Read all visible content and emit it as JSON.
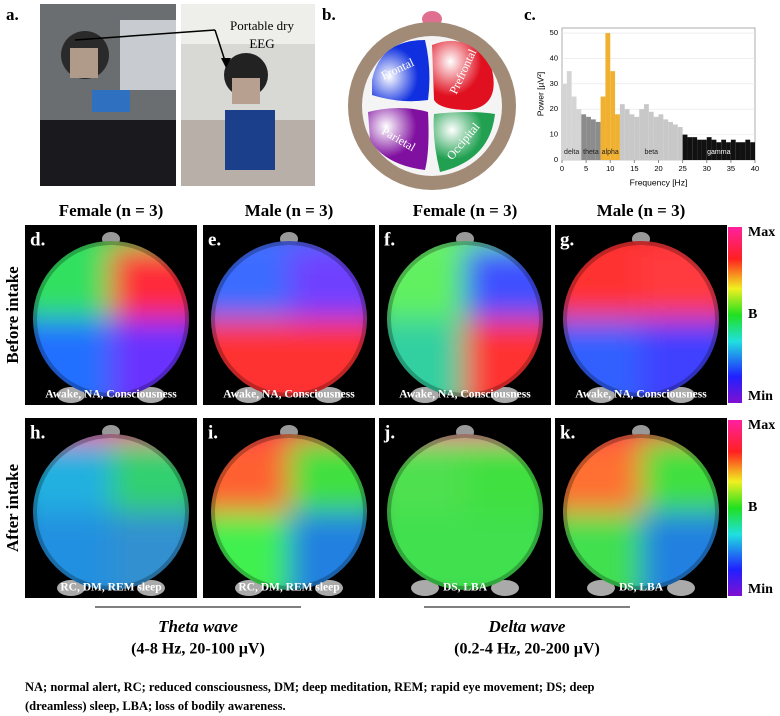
{
  "panel_a": {
    "label": "a.",
    "annotation": [
      "Portable dry",
      "EEG"
    ]
  },
  "panel_b": {
    "label": "b.",
    "regions": [
      "Frontal",
      "Prefrontal",
      "Parietal",
      "Occipital"
    ]
  },
  "panel_c": {
    "label": "c.",
    "chart": {
      "type": "bar",
      "ylabel": "Power [µV²]",
      "xlabel": "Frequency [Hz]",
      "bins": [
        0,
        1,
        2,
        3,
        4,
        5,
        6,
        7,
        8,
        9,
        10,
        11,
        12,
        13,
        14,
        15,
        16,
        17,
        18,
        19,
        20,
        21,
        22,
        23,
        24,
        25,
        26,
        27,
        28,
        29,
        30,
        31,
        32,
        33,
        34,
        35,
        36,
        37,
        38,
        39,
        40
      ],
      "values": [
        30,
        35,
        25,
        20,
        18,
        17,
        16,
        15,
        25,
        50,
        35,
        18,
        22,
        20,
        18,
        17,
        20,
        22,
        19,
        17,
        18,
        16,
        15,
        14,
        13,
        10,
        9,
        9,
        8,
        8,
        9,
        8,
        7,
        8,
        7,
        8,
        7,
        7,
        8,
        7
      ],
      "xlim": [
        0,
        40
      ],
      "ylim": [
        0,
        52
      ],
      "xticks": [
        0,
        5,
        10,
        15,
        20,
        25,
        30,
        35,
        40
      ],
      "yticks": [
        0,
        10,
        20,
        30,
        40,
        50
      ],
      "bands": [
        {
          "name": "delta",
          "range": [
            0,
            4
          ],
          "color": "#d4d4d4"
        },
        {
          "name": "theta",
          "range": [
            4,
            8
          ],
          "color": "#8c8c8c"
        },
        {
          "name": "alpha",
          "range": [
            8,
            12
          ],
          "color": "#f0b030"
        },
        {
          "name": "beta",
          "range": [
            12,
            25
          ],
          "color": "#c8c8c8"
        },
        {
          "name": "gamma",
          "range": [
            25,
            40
          ],
          "color": "#111111"
        }
      ]
    }
  },
  "columns": [
    "Female (n = 3)",
    "Male (n = 3)",
    "Female (n = 3)",
    "Male (n = 3)"
  ],
  "rows": [
    {
      "label": "Before intake",
      "panels": [
        {
          "letter": "d.",
          "state": "Awake, NA, Consciousness"
        },
        {
          "letter": "e.",
          "state": "Awake, NA, Consciousness"
        },
        {
          "letter": "f.",
          "state": "Awake, NA, Consciousness"
        },
        {
          "letter": "g.",
          "state": "Awake, NA, Consciousness"
        }
      ]
    },
    {
      "label": "After intake",
      "panels": [
        {
          "letter": "h.",
          "state": "RC, DM, REM sleep"
        },
        {
          "letter": "i.",
          "state": "RC, DM, REM sleep"
        },
        {
          "letter": "j.",
          "state": "DS, LBA"
        },
        {
          "letter": "k.",
          "state": "DS, LBA"
        }
      ]
    }
  ],
  "colorbar": {
    "max": "Max",
    "mid": "B",
    "min": "Min"
  },
  "waves": [
    {
      "name": "Theta wave",
      "range": "(4-8 Hz, 20-100 µV)"
    },
    {
      "name": "Delta wave",
      "range": "(0.2-4 Hz, 20-200 µV)"
    }
  ],
  "caption": [
    "NA; normal alert, RC; reduced consciousness, DM; deep meditation, REM; rapid eye movement; DS; deep",
    "(dreamless) sleep, LBA; loss of bodily awareness."
  ]
}
